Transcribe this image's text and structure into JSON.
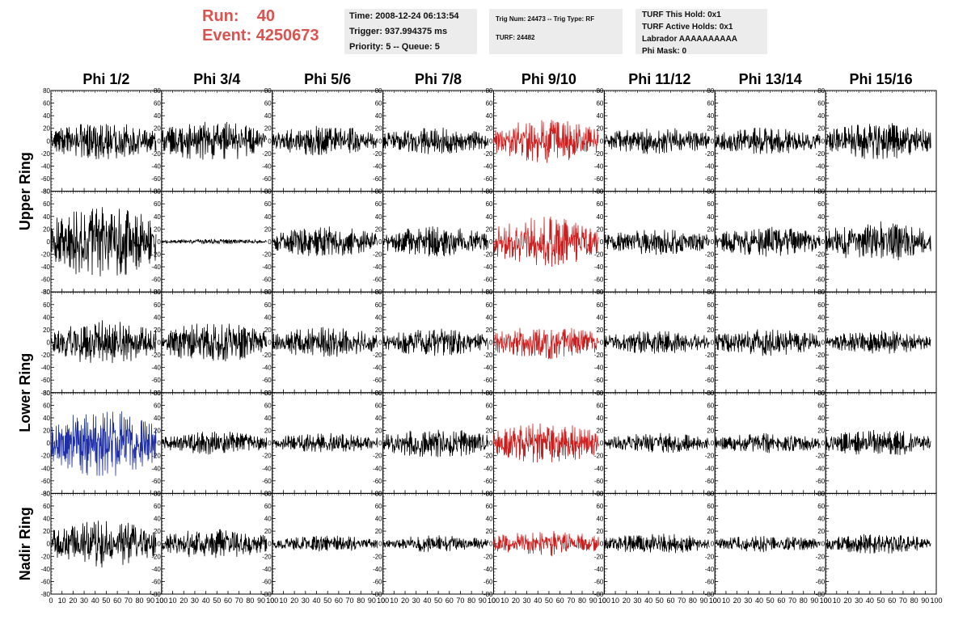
{
  "header": {
    "run_label": "Run:",
    "run_value": "40",
    "event_label": "Event:",
    "event_value": "4250673",
    "time": "Time: 2008-12-24 06:13:54",
    "trigger": "Trigger: 937.994375 ms",
    "priority": "Priority: 5 -- Queue: 5",
    "trig_num": "Trig Num: 24473 -- Trig Type: RF",
    "turf": "TURF: 24482",
    "turf_hold": "TURF This Hold: 0x1",
    "turf_active": "TURF Active Holds: 0x1",
    "labrador": "Labrador AAAAAAAAAA",
    "phi_mask": "Phi Mask: 0"
  },
  "chart_data": {
    "type": "line",
    "columns": [
      "Phi 1/2",
      "Phi 3/4",
      "Phi 5/6",
      "Phi 7/8",
      "Phi 9/10",
      "Phi 11/12",
      "Phi 13/14",
      "Phi 15/16"
    ],
    "row_labels": [
      {
        "text": "Upper Ring",
        "rows": [
          0,
          1
        ]
      },
      {
        "text": "Lower Ring",
        "rows": [
          2,
          3
        ]
      },
      {
        "text": "Nadir Ring",
        "rows": [
          4,
          4
        ]
      }
    ],
    "xlim": [
      0,
      100
    ],
    "ylim": [
      -80,
      80
    ],
    "x_ticks": [
      0,
      10,
      20,
      30,
      40,
      50,
      60,
      70,
      80,
      90,
      100
    ],
    "x_tick_labels": [
      "0",
      "10",
      "20",
      "30",
      "40",
      "50",
      "60",
      "70",
      "80",
      "90",
      "100"
    ],
    "y_ticks": [
      -80,
      -60,
      -40,
      -20,
      0,
      20,
      40,
      60,
      80
    ],
    "y_tick_labels": [
      "-80",
      "-60",
      "-40",
      "-20",
      "0",
      "20",
      "40",
      "60",
      "80"
    ],
    "trace_x_range": [
      0,
      95
    ],
    "colors": {
      "default": "#000000",
      "highlight": "#cc1f1f",
      "blue": "#1f2fa8"
    },
    "amplitudes": [
      [
        22,
        24,
        18,
        16,
        26,
        16,
        16,
        22
      ],
      [
        45,
        3,
        18,
        18,
        30,
        16,
        18,
        24
      ],
      [
        26,
        24,
        18,
        16,
        20,
        14,
        16,
        14
      ],
      [
        40,
        14,
        12,
        18,
        24,
        12,
        12,
        16
      ],
      [
        28,
        18,
        10,
        10,
        16,
        12,
        10,
        12
      ]
    ],
    "trace_colors": [
      [
        "default",
        "default",
        "default",
        "default",
        "highlight",
        "default",
        "default",
        "default"
      ],
      [
        "default",
        "default",
        "default",
        "default",
        "highlight",
        "default",
        "default",
        "default"
      ],
      [
        "default",
        "default",
        "default",
        "default",
        "highlight",
        "default",
        "default",
        "default"
      ],
      [
        "blue",
        "default",
        "default",
        "default",
        "highlight",
        "default",
        "default",
        "default"
      ],
      [
        "default",
        "default",
        "default",
        "default",
        "highlight",
        "default",
        "default",
        "default"
      ]
    ]
  }
}
